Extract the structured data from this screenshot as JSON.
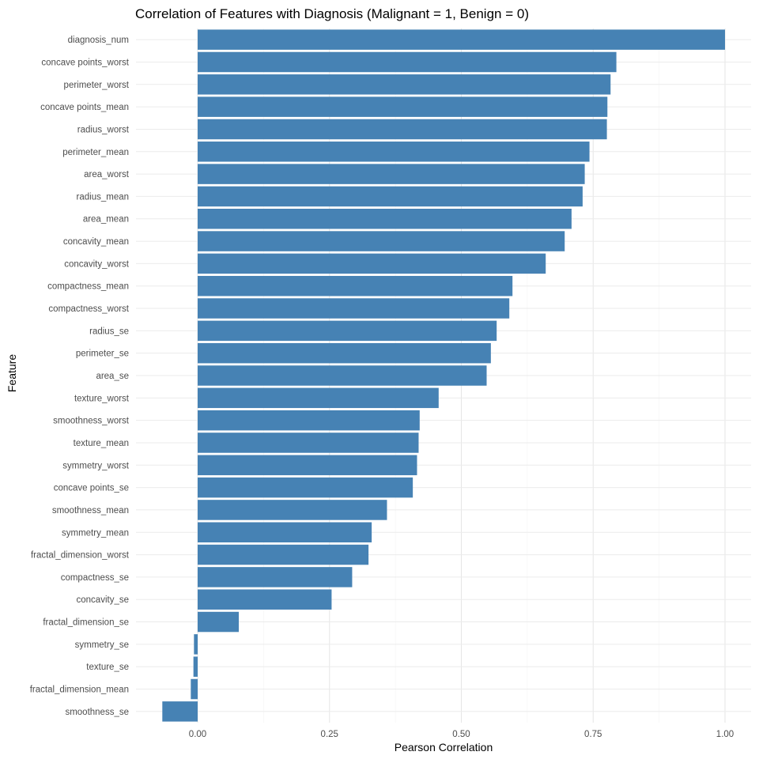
{
  "chart_data": {
    "type": "bar",
    "orientation": "horizontal",
    "title": "Correlation of Features with Diagnosis (Malignant = 1, Benign = 0)",
    "xlabel": "Pearson Correlation",
    "ylabel": "Feature",
    "xlim": [
      -0.11,
      1.05
    ],
    "xticks": [
      0.0,
      0.25,
      0.5,
      0.75,
      1.0
    ],
    "xtick_labels": [
      "0.00",
      "0.25",
      "0.50",
      "0.75",
      "1.00"
    ],
    "grid": true,
    "legend": "none",
    "bar_color": "#4682B4",
    "categories": [
      "diagnosis_num",
      "concave points_worst",
      "perimeter_worst",
      "concave points_mean",
      "radius_worst",
      "perimeter_mean",
      "area_worst",
      "radius_mean",
      "area_mean",
      "concavity_mean",
      "concavity_worst",
      "compactness_mean",
      "compactness_worst",
      "radius_se",
      "perimeter_se",
      "area_se",
      "texture_worst",
      "smoothness_worst",
      "texture_mean",
      "symmetry_worst",
      "concave points_se",
      "smoothness_mean",
      "symmetry_mean",
      "fractal_dimension_worst",
      "compactness_se",
      "concavity_se",
      "fractal_dimension_se",
      "symmetry_se",
      "texture_se",
      "fractal_dimension_mean",
      "smoothness_se"
    ],
    "values": [
      1.0,
      0.794,
      0.783,
      0.777,
      0.776,
      0.743,
      0.734,
      0.73,
      0.709,
      0.696,
      0.66,
      0.597,
      0.591,
      0.567,
      0.556,
      0.548,
      0.457,
      0.421,
      0.419,
      0.416,
      0.408,
      0.359,
      0.33,
      0.324,
      0.293,
      0.254,
      0.078,
      -0.007,
      -0.008,
      -0.013,
      -0.067
    ]
  }
}
